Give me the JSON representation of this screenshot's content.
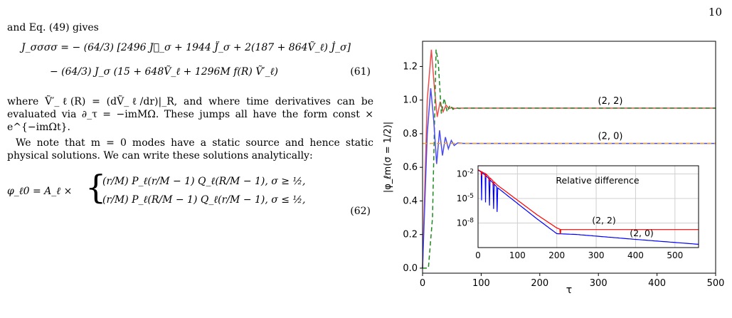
{
  "page_number": "10",
  "text": {
    "p1": "and Eq. (49) gives",
    "eq61_line1": "J_σσσσ = − (64/3) [2496 J⃛_σ + 1944 J̈_σ + 2(187 + 864Ṽ_ℓ) J̇_σ]",
    "eq61_line2": "− (64/3) J_σ (15 + 648Ṽ_ℓ + 1296M f(R) Ṽ′_ℓ)",
    "eq61_number": "(61)",
    "p2": "where Ṽ′_ℓ(R) = (dṼ_ℓ/dr)|_R, and where time derivatives can be evaluated via ∂_τ = −imMΩ. These jumps all have the form const × e^{−imΩt}.",
    "p3": "We note that m = 0 modes have a static source and hence static physical solutions. We can write these solutions analytically:",
    "eq62_lhs": "φ_ℓ0 = A_ℓ ×",
    "eq62_case1": "(r/M) P_ℓ(r/M − 1) Q_ℓ(R/M − 1),  σ ≥ ½,",
    "eq62_case2": "(r/M) P_ℓ(R/M − 1) Q_ℓ(r/M − 1),  σ ≤ ½,",
    "eq62_number": "(62)"
  },
  "chart_data": {
    "type": "line",
    "xlabel": "τ",
    "ylabel": "|φ_ℓm(σ = 1/2)|",
    "xlim": [
      0,
      500
    ],
    "ylim": [
      -0.03,
      1.35
    ],
    "xticks": [
      "0",
      "100",
      "200",
      "300",
      "400",
      "500"
    ],
    "yticks": [
      "0.0",
      "0.2",
      "0.4",
      "0.6",
      "0.8",
      "1.0",
      "1.2"
    ],
    "annotations": [
      "(2, 2)",
      "(2, 0)"
    ],
    "series": [
      {
        "label": "(2, 2)",
        "color": "#ef4b4b",
        "style": "solid",
        "x": [
          0,
          8,
          15,
          20,
          25,
          30,
          35,
          40,
          45,
          50,
          55,
          60,
          70,
          500
        ],
        "y": [
          0.0,
          1.0,
          1.3,
          1.08,
          0.9,
          0.99,
          0.93,
          0.97,
          0.95,
          0.955,
          0.95,
          0.952,
          0.952,
          0.952
        ]
      },
      {
        "label": "(2, 2) reference",
        "color": "#1f8a1f",
        "style": "dashed",
        "x": [
          0,
          10,
          17,
          23,
          27,
          32,
          37,
          42,
          47,
          52,
          57,
          62,
          72,
          500
        ],
        "y": [
          0.0,
          0.0,
          0.3,
          1.3,
          1.22,
          0.92,
          1.01,
          0.93,
          0.97,
          0.945,
          0.955,
          0.95,
          0.952,
          0.952
        ]
      },
      {
        "label": "(2, 0)",
        "color": "#4b4bef",
        "style": "solid",
        "x": [
          0,
          8,
          14,
          19,
          24,
          29,
          34,
          39,
          44,
          49,
          54,
          60,
          70,
          500
        ],
        "y": [
          0.0,
          0.8,
          1.07,
          0.88,
          0.62,
          0.82,
          0.67,
          0.78,
          0.71,
          0.76,
          0.73,
          0.745,
          0.742,
          0.742
        ]
      },
      {
        "label": "(2, 0) reference",
        "color": "#e6a23c",
        "style": "dashed",
        "x": [
          0,
          500
        ],
        "y": [
          0.742,
          0.742
        ]
      }
    ],
    "inset": {
      "title": "Relative difference",
      "scale": "log",
      "xlim": [
        0,
        560
      ],
      "xticks": [
        "0",
        "100",
        "200",
        "300",
        "400",
        "500"
      ],
      "yticks": [
        "10^-2",
        "10^-5",
        "10^-8"
      ],
      "annotations": [
        "(2, 2)",
        "(2, 0)"
      ],
      "series": [
        {
          "label": "(2, 2)",
          "color": "#ff0000",
          "x": [
            0,
            20,
            50,
            100,
            150,
            200,
            210,
            560
          ],
          "y_log10": [
            -1.5,
            -2.0,
            -3.4,
            -5.2,
            -7.0,
            -8.6,
            -8.8,
            -8.8
          ]
        },
        {
          "label": "(2, 0)",
          "color": "#0000ff",
          "x": [
            0,
            20,
            50,
            100,
            150,
            200,
            250,
            300,
            400,
            560
          ],
          "y_log10": [
            -1.5,
            -2.2,
            -3.7,
            -5.6,
            -7.5,
            -9.3,
            -9.4,
            -9.6,
            -10.0,
            -10.6
          ]
        }
      ]
    }
  }
}
